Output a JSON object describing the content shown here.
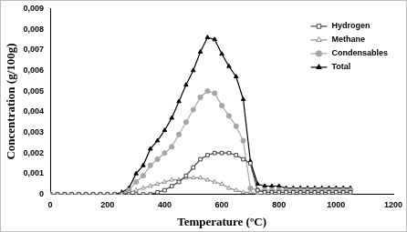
{
  "chart_data": {
    "type": "line",
    "x_label": "Temperature (ºC)",
    "y_label": "Concentration (g/100g)",
    "x": [
      0,
      25,
      50,
      75,
      100,
      125,
      150,
      175,
      200,
      225,
      250,
      275,
      300,
      325,
      350,
      375,
      400,
      425,
      450,
      475,
      500,
      525,
      550,
      575,
      600,
      625,
      650,
      675,
      700,
      725,
      750,
      775,
      800,
      825,
      850,
      875,
      900,
      925,
      950,
      975,
      1000,
      1025,
      1050
    ],
    "series": [
      {
        "name": "Hydrogen",
        "color": "#404040",
        "marker": "open_square",
        "line_style": "solid",
        "values": [
          0,
          0,
          0,
          0,
          0,
          0,
          0,
          0,
          0,
          0,
          0,
          0,
          0,
          0,
          0,
          0.0001,
          0.0002,
          0.0004,
          0.0006,
          0.0009,
          0.0013,
          0.0017,
          0.0019,
          0.002,
          0.002,
          0.002,
          0.0019,
          0.0017,
          0.0015,
          0.0002,
          0.0001,
          0.0001,
          0.0001,
          0.0001,
          0.0001,
          0.0001,
          0.0001,
          0.0001,
          0.0001,
          0.0001,
          0.0001,
          0.0001,
          0.0001
        ]
      },
      {
        "name": "Methane",
        "color": "#8c8c8c",
        "marker": "open_triangle",
        "line_style": "solid",
        "values": [
          0,
          0,
          0,
          0,
          0,
          0,
          0,
          0,
          0,
          0,
          0,
          0.0001,
          0.0002,
          0.0003,
          0.0004,
          0.0005,
          0.0006,
          0.0007,
          0.0007,
          0.0008,
          0.0008,
          0.0008,
          0.0007,
          0.0006,
          0.0005,
          0.0003,
          0.0002,
          0.0001,
          0.0001,
          0,
          0,
          0,
          0,
          0,
          0,
          0,
          0,
          0,
          0,
          0,
          0,
          0,
          0
        ]
      },
      {
        "name": "Condensables",
        "color": "#a6a6a6",
        "marker": "circle",
        "line_style": "solid",
        "values": [
          0,
          0,
          0,
          0,
          0,
          0,
          0,
          0,
          0,
          0,
          0,
          0.0002,
          0.0006,
          0.0009,
          0.0014,
          0.0017,
          0.002,
          0.0023,
          0.0029,
          0.0035,
          0.0041,
          0.0047,
          0.005,
          0.0049,
          0.0043,
          0.0038,
          0.0033,
          0.0026,
          0.0003,
          0.0002,
          0.0002,
          0.0002,
          0.0002,
          0.0002,
          0.0002,
          0.0002,
          0.0002,
          0.0002,
          0.0002,
          0.0002,
          0.0002,
          0.0002,
          0.0002
        ]
      },
      {
        "name": "Total",
        "color": "#000000",
        "marker": "triangle",
        "line_style": "solid",
        "values": [
          0,
          0,
          0,
          0,
          0,
          0,
          0,
          0,
          0,
          0,
          0.0001,
          0.0003,
          0.001,
          0.0014,
          0.0022,
          0.0026,
          0.0031,
          0.0037,
          0.0045,
          0.0053,
          0.006,
          0.0069,
          0.0076,
          0.0075,
          0.0068,
          0.0062,
          0.0057,
          0.0046,
          0.0016,
          0.0005,
          0.0004,
          0.0004,
          0.0004,
          0.0003,
          0.0003,
          0.0003,
          0.0003,
          0.0003,
          0.0003,
          0.0003,
          0.0003,
          0.0003,
          0.0003
        ]
      }
    ],
    "xlim": [
      0,
      1200
    ],
    "xticks": [
      0,
      200,
      400,
      600,
      800,
      1000,
      1200
    ],
    "ylim": [
      0,
      0.009
    ],
    "yticks": [
      0,
      {
        "value": 0.001,
        "label": "0,001"
      },
      {
        "value": 0.002,
        "label": "0,002"
      },
      {
        "value": 0.003,
        "label": "0,003"
      },
      {
        "value": 0.004,
        "label": "0,004"
      },
      {
        "value": 0.005,
        "label": "0,005"
      },
      {
        "value": 0.006,
        "label": "0,006"
      },
      {
        "value": 0.007,
        "label": "0,007"
      },
      {
        "value": 0.008,
        "label": "0,008"
      },
      {
        "value": 0.009,
        "label": "0,009"
      }
    ],
    "grid": false,
    "legend": "upper right"
  }
}
